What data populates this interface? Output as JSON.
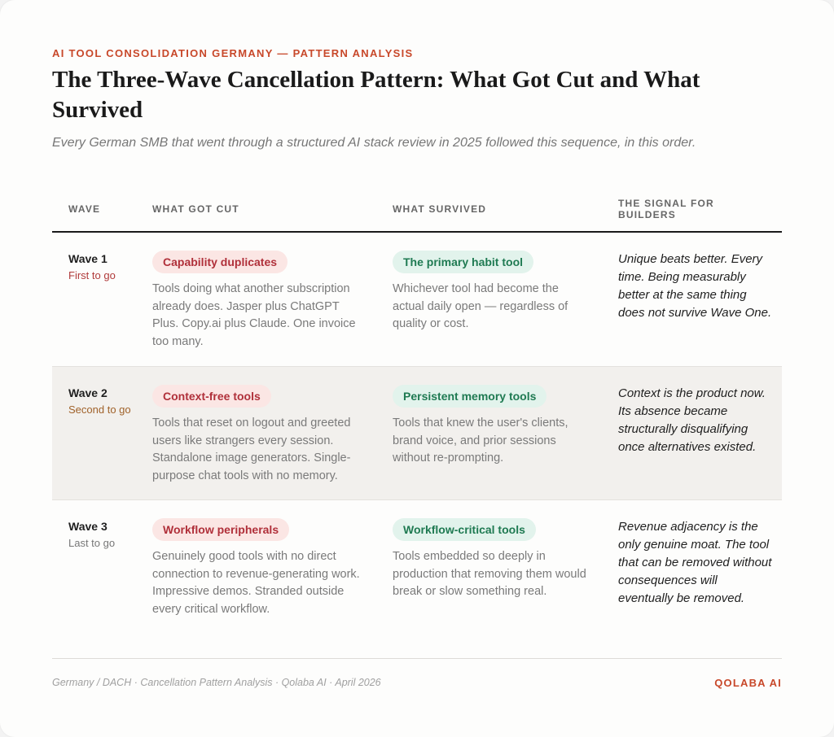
{
  "header": {
    "eyebrow": "AI TOOL CONSOLIDATION GERMANY — PATTERN ANALYSIS",
    "title": "The Three-Wave Cancellation Pattern: What Got Cut and What Survived",
    "subtitle": "Every German SMB that went through a structured AI stack review in 2025 followed this sequence, in this order."
  },
  "table": {
    "columns": [
      "WAVE",
      "WHAT GOT CUT",
      "WHAT SURVIVED",
      "THE SIGNAL FOR BUILDERS"
    ],
    "rows": [
      {
        "wave": "Wave 1",
        "order": "First to go",
        "order_color": "#b03a3a",
        "cut_tag": "Capability duplicates",
        "cut_desc": "Tools doing what another subscription already does. Jasper plus ChatGPT Plus. Copy.ai plus Claude. One invoice too many.",
        "survived_tag": "The primary habit tool",
        "survived_desc": "Whichever tool had become the actual daily open — regardless of quality or cost.",
        "signal": "Unique beats better. Every time. Being measurably better at the same thing does not survive Wave One."
      },
      {
        "wave": "Wave 2",
        "order": "Second to go",
        "order_color": "#a0622a",
        "cut_tag": "Context-free tools",
        "cut_desc": "Tools that reset on logout and greeted users like strangers every session. Standalone image generators. Single-purpose chat tools with no memory.",
        "survived_tag": "Persistent memory tools",
        "survived_desc": "Tools that knew the user's clients, brand voice, and prior sessions without re-prompting.",
        "signal": "Context is the product now. Its absence became structurally disqualifying once alternatives existed."
      },
      {
        "wave": "Wave 3",
        "order": "Last to go",
        "order_color": "#777777",
        "cut_tag": "Workflow peripherals",
        "cut_desc": "Genuinely good tools with no direct connection to revenue-generating work. Impressive demos. Stranded outside every critical workflow.",
        "survived_tag": "Workflow-critical tools",
        "survived_desc": "Tools embedded so deeply in production that removing them would break or slow something real.",
        "signal": "Revenue adjacency is the only genuine moat. The tool that can be removed without consequences will eventually be removed."
      }
    ]
  },
  "footer": {
    "source": "Germany / DACH · Cancellation Pattern Analysis · Qolaba AI · April 2026",
    "brand": "QOLABA AI"
  }
}
